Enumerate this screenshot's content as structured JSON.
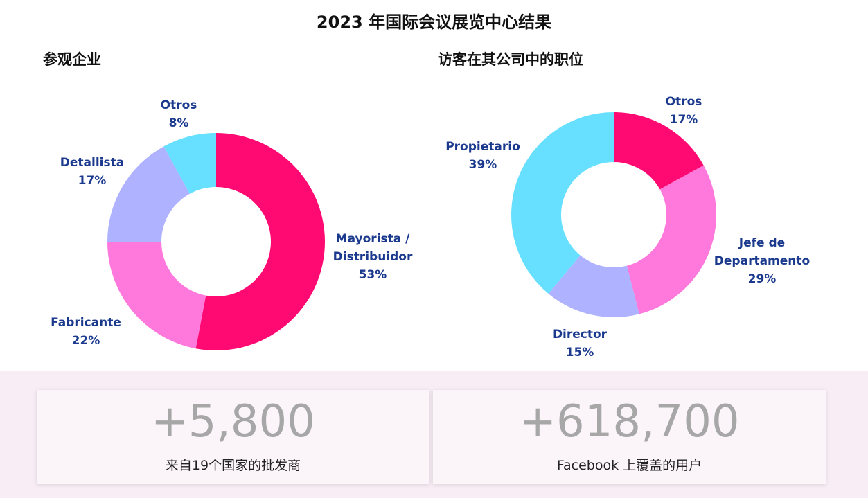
{
  "title": "2023 年国际会议展览中心结果",
  "colors": {
    "label_text": "#1b3a8e",
    "stat_value": "#a7a7a7",
    "band_background": "#f8edf5"
  },
  "chart_data": [
    {
      "type": "pie",
      "variant": "donut",
      "title": "参观企业",
      "slices": [
        {
          "label_lines": [
            "Mayorista /",
            "Distribuidor"
          ],
          "pct_text": "53%",
          "value": 53,
          "color": "#ff0a72"
        },
        {
          "label_lines": [
            "Fabricante"
          ],
          "pct_text": "22%",
          "value": 22,
          "color": "#ff78dc"
        },
        {
          "label_lines": [
            "Detallista"
          ],
          "pct_text": "17%",
          "value": 17,
          "color": "#aeb2ff"
        },
        {
          "label_lines": [
            "Otros"
          ],
          "pct_text": "8%",
          "value": 8,
          "color": "#66e0fe"
        }
      ]
    },
    {
      "type": "pie",
      "variant": "donut",
      "title": "访客在其公司中的职位",
      "slices": [
        {
          "label_lines": [
            "Otros"
          ],
          "pct_text": "17%",
          "value": 17,
          "color": "#ff0a72"
        },
        {
          "label_lines": [
            "Jefe de",
            "Departamento"
          ],
          "pct_text": "29%",
          "value": 29,
          "color": "#ff78dc"
        },
        {
          "label_lines": [
            "Director"
          ],
          "pct_text": "15%",
          "value": 15,
          "color": "#aeb2ff"
        },
        {
          "label_lines": [
            "Propietario"
          ],
          "pct_text": "39%",
          "value": 39,
          "color": "#66e0fe"
        }
      ]
    }
  ],
  "stats": [
    {
      "value": "+5,800",
      "caption": "来自19个国家的批发商"
    },
    {
      "value": "+618,700",
      "caption": "Facebook 上覆盖的用户"
    }
  ]
}
